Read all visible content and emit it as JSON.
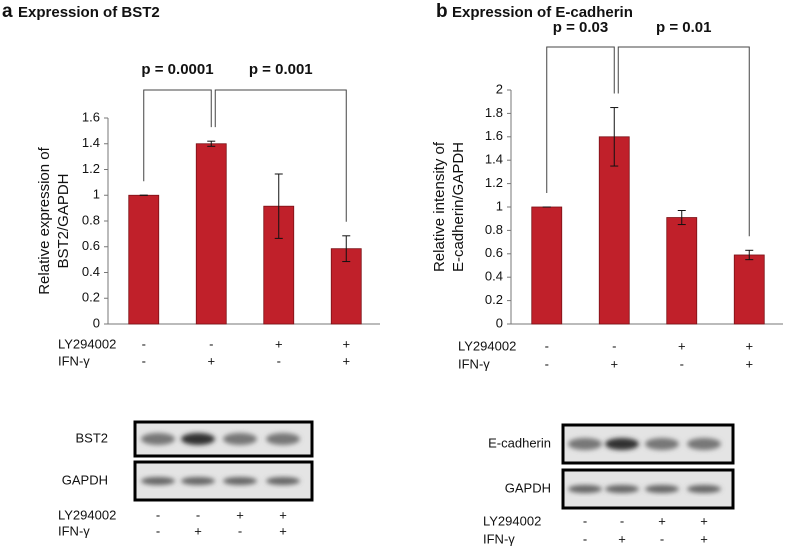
{
  "chart_data": [
    {
      "type": "bar",
      "panel": "a",
      "title": "Expression of BST2",
      "y_label": [
        "Relative expression of",
        "BST2/GAPDH"
      ],
      "values": [
        1,
        1.4,
        0.915,
        0.585
      ],
      "errors": [
        0,
        0.02,
        0.25,
        0.1
      ],
      "color": "#c0202a",
      "ylim": [
        0,
        1.6
      ],
      "yticks": [
        0,
        0.2,
        0.4,
        0.6,
        0.8,
        1,
        1.2,
        1.4,
        1.6
      ],
      "treatments": [
        {
          "name": "LY294002",
          "signs": [
            "-",
            "-",
            "+",
            "+"
          ]
        },
        {
          "name": "IFN-γ",
          "signs": [
            "-",
            "+",
            "-",
            "+"
          ]
        }
      ],
      "comparisons": [
        {
          "between": [
            0,
            1
          ],
          "label": "p = 0.0001"
        },
        {
          "between": [
            1,
            3
          ],
          "label": "p = 0.001"
        }
      ]
    },
    {
      "type": "bar",
      "panel": "b",
      "title": "Expression of E-cadherin",
      "y_label": [
        "Relative intensity of",
        "E-cadherin/GAPDH"
      ],
      "values": [
        1,
        1.6,
        0.91,
        0.59
      ],
      "errors": [
        0,
        0.25,
        0.06,
        0.04
      ],
      "color": "#c0202a",
      "ylim": [
        0,
        2
      ],
      "yticks": [
        0,
        0.2,
        0.4,
        0.6,
        0.8,
        1,
        1.2,
        1.4,
        1.6,
        1.8,
        2
      ],
      "treatments": [
        {
          "name": "LY294002",
          "signs": [
            "-",
            "-",
            "+",
            "+"
          ]
        },
        {
          "name": "IFN-γ",
          "signs": [
            "-",
            "+",
            "-",
            "+"
          ]
        }
      ],
      "comparisons": [
        {
          "between": [
            0,
            1
          ],
          "label": "p = 0.03"
        },
        {
          "between": [
            1,
            3
          ],
          "label": "p = 0.01"
        }
      ]
    }
  ],
  "blots": [
    {
      "bands": [
        "BST2",
        "GAPDH"
      ],
      "treatments": [
        {
          "name": "LY294002",
          "signs": [
            "-",
            "-",
            "+",
            "+"
          ]
        },
        {
          "name": "IFN-γ",
          "signs": [
            "-",
            "+",
            "-",
            "+"
          ]
        }
      ]
    },
    {
      "bands": [
        "E-cadherin",
        "GAPDH"
      ],
      "treatments": [
        {
          "name": "LY294002",
          "signs": [
            "-",
            "-",
            "+",
            "+"
          ]
        },
        {
          "name": "IFN-γ",
          "signs": [
            "-",
            "+",
            "-",
            "+"
          ]
        }
      ]
    }
  ]
}
